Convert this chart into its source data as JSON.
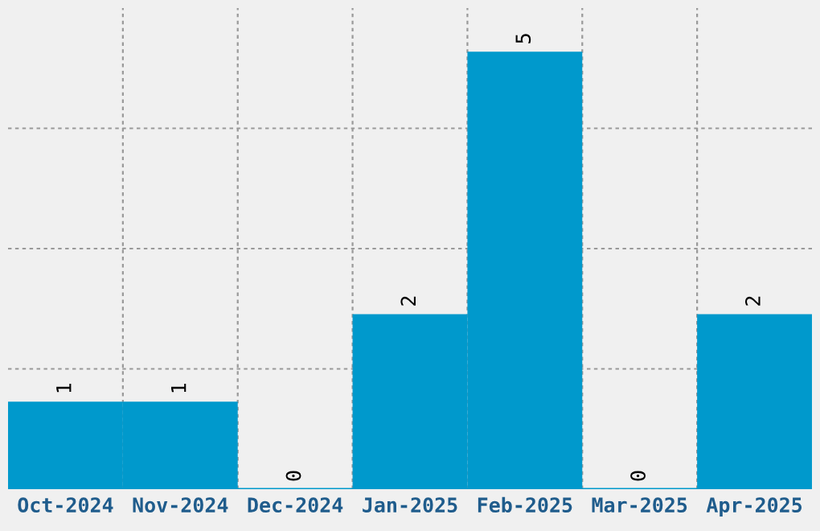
{
  "chart_data": {
    "type": "bar",
    "categories": [
      "Oct-2024",
      "Nov-2024",
      "Dec-2024",
      "Jan-2025",
      "Feb-2025",
      "Mar-2025",
      "Apr-2025"
    ],
    "values": [
      1,
      1,
      0,
      2,
      5,
      0,
      2
    ],
    "color": "#0099cc",
    "ylim": [
      0,
      5.5
    ],
    "yticks": [
      {
        "value": 1.375,
        "label": null
      },
      {
        "value": 2.75,
        "label": null
      },
      {
        "value": 4.125,
        "label": null
      }
    ],
    "tick_labels": "x",
    "grid": true,
    "data_labels": true
  }
}
